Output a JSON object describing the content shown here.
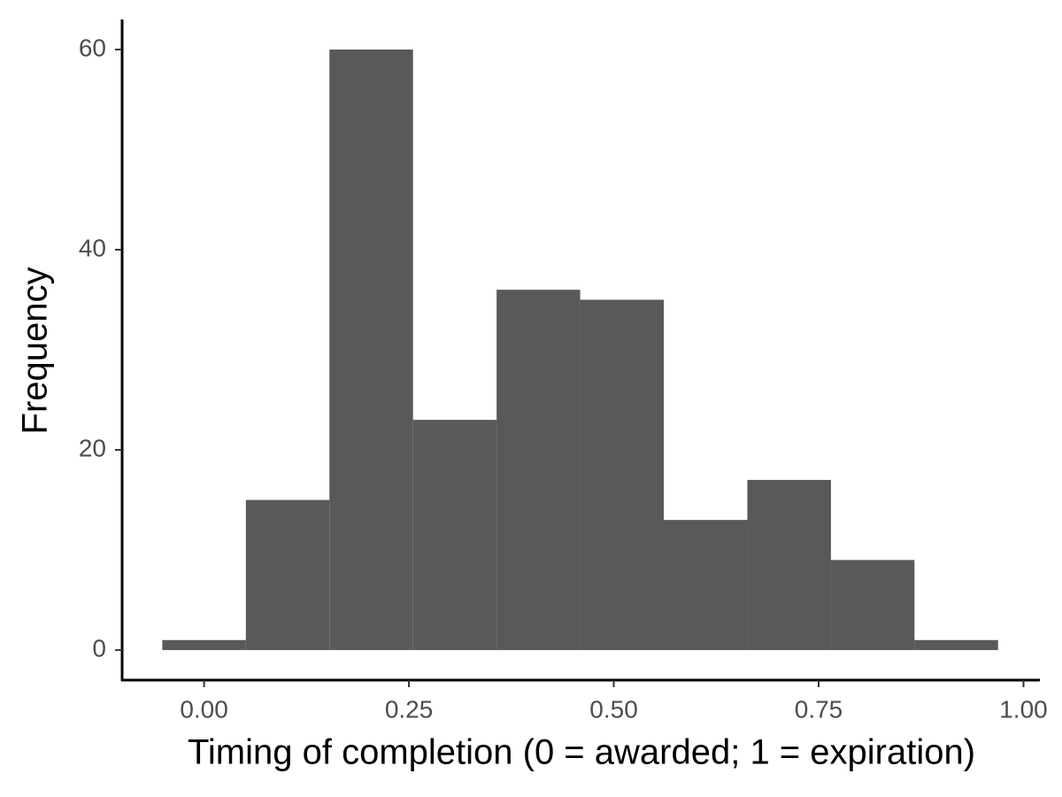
{
  "chart_data": {
    "type": "histogram",
    "x_label": "Timing of completion (0 = awarded; 1 = expiration)",
    "y_label": "Frequency",
    "bins": [
      -0.051,
      0.051,
      0.153,
      0.255,
      0.357,
      0.459,
      0.561,
      0.663,
      0.765,
      0.867,
      0.969
    ],
    "counts": [
      1,
      15,
      60,
      23,
      36,
      35,
      13,
      17,
      9,
      1
    ],
    "color": "#595959",
    "xlim": [
      -0.1,
      1.02
    ],
    "ylim": [
      -3,
      63
    ],
    "xticks": [
      {
        "value": 0,
        "label": "0.00"
      },
      {
        "value": 0.25,
        "label": "0.25"
      },
      {
        "value": 0.5,
        "label": "0.50"
      },
      {
        "value": 0.75,
        "label": "0.75"
      },
      {
        "value": 1,
        "label": "1.00"
      }
    ],
    "yticks": [
      0,
      20,
      40,
      60
    ],
    "grid": false
  }
}
